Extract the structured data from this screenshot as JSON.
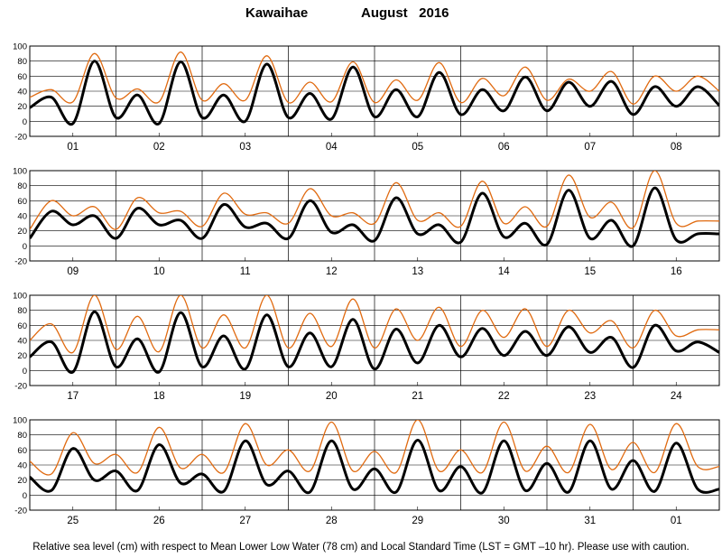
{
  "title": {
    "location": "Kawaihae",
    "month_year": "August   2016"
  },
  "footnote": "Relative sea level (cm) with respect to Mean Lower Low Water (78 cm) and Local Standard Time (LST = GMT –10 hr). Please use with caution.",
  "colors": {
    "predicted": "#000000",
    "observed": "#e06a10",
    "grid": "#000000"
  },
  "chart_data": {
    "type": "line",
    "y_ticks": [
      -20,
      0,
      20,
      40,
      60,
      80,
      100
    ],
    "ylim": [
      -20,
      100
    ],
    "grid": true,
    "rows": [
      {
        "days": [
          "01",
          "02",
          "03",
          "04",
          "05",
          "06",
          "07",
          "08"
        ],
        "series": [
          {
            "key": "predicted",
            "hours": [
              0,
              6,
              12,
              18,
              24,
              30,
              36,
              42,
              48,
              54,
              60,
              66,
              72,
              78,
              84,
              90,
              96,
              102,
              108,
              114,
              120,
              126,
              132,
              138,
              144,
              150,
              156,
              162,
              168,
              174,
              180,
              186,
              192
            ],
            "values": [
              18,
              32,
              -3,
              80,
              5,
              35,
              -3,
              79,
              5,
              35,
              0,
              76,
              5,
              37,
              3,
              72,
              6,
              42,
              6,
              65,
              9,
              42,
              14,
              59,
              14,
              52,
              20,
              53,
              9,
              46,
              20,
              46,
              21
            ]
          },
          {
            "key": "observed",
            "hours": [
              0,
              6,
              12,
              18,
              24,
              30,
              36,
              42,
              48,
              54,
              60,
              66,
              72,
              78,
              84,
              90,
              96,
              102,
              108,
              114,
              120,
              126,
              132,
              138,
              144,
              150,
              156,
              162,
              168,
              174,
              180,
              186,
              192
            ],
            "values": [
              32,
              42,
              26,
              90,
              31,
              43,
              26,
              92,
              28,
              50,
              28,
              87,
              25,
              52,
              26,
              79,
              25,
              55,
              28,
              78,
              25,
              57,
              34,
              72,
              28,
              56,
              40,
              66,
              23,
              60,
              40,
              60,
              40
            ]
          }
        ]
      },
      {
        "days": [
          "09",
          "10",
          "11",
          "12",
          "13",
          "14",
          "15",
          "16"
        ],
        "series": [
          {
            "key": "predicted",
            "hours": [
              0,
              6,
              12,
              18,
              24,
              30,
              36,
              42,
              48,
              54,
              60,
              66,
              72,
              78,
              84,
              90,
              96,
              102,
              108,
              114,
              120,
              126,
              132,
              138,
              144,
              150,
              156,
              162,
              168,
              174,
              180,
              186,
              192
            ],
            "values": [
              10,
              46,
              28,
              40,
              10,
              50,
              28,
              34,
              10,
              55,
              25,
              30,
              10,
              60,
              18,
              28,
              7,
              64,
              16,
              28,
              5,
              70,
              12,
              30,
              2,
              74,
              10,
              34,
              0,
              77,
              8,
              16,
              16
            ]
          },
          {
            "key": "observed",
            "hours": [
              0,
              6,
              12,
              18,
              24,
              30,
              36,
              42,
              48,
              54,
              60,
              66,
              72,
              78,
              84,
              90,
              96,
              102,
              108,
              114,
              120,
              126,
              132,
              138,
              144,
              150,
              156,
              162,
              168,
              174,
              180,
              186,
              192
            ],
            "values": [
              22,
              60,
              40,
              52,
              22,
              64,
              44,
              46,
              26,
              70,
              42,
              44,
              30,
              76,
              40,
              44,
              30,
              84,
              34,
              44,
              26,
              86,
              30,
              52,
              26,
              94,
              38,
              58,
              24,
              100,
              30,
              33,
              33
            ]
          }
        ]
      },
      {
        "days": [
          "17",
          "18",
          "19",
          "20",
          "21",
          "22",
          "23",
          "24"
        ],
        "series": [
          {
            "key": "predicted",
            "hours": [
              0,
              6,
              12,
              18,
              24,
              30,
              36,
              42,
              48,
              54,
              60,
              66,
              72,
              78,
              84,
              90,
              96,
              102,
              108,
              114,
              120,
              126,
              132,
              138,
              144,
              150,
              156,
              162,
              168,
              174,
              180,
              186,
              192
            ],
            "values": [
              18,
              38,
              -2,
              78,
              5,
              42,
              -2,
              77,
              5,
              46,
              2,
              74,
              5,
              50,
              5,
              68,
              2,
              55,
              10,
              60,
              18,
              56,
              20,
              52,
              20,
              58,
              24,
              44,
              4,
              60,
              26,
              38,
              24
            ]
          },
          {
            "key": "observed",
            "hours": [
              0,
              6,
              12,
              18,
              24,
              30,
              36,
              42,
              48,
              54,
              60,
              66,
              72,
              78,
              84,
              90,
              96,
              102,
              108,
              114,
              120,
              126,
              132,
              138,
              144,
              150,
              156,
              162,
              168,
              174,
              180,
              186,
              192
            ],
            "values": [
              40,
              62,
              24,
              100,
              28,
              72,
              25,
              100,
              30,
              74,
              30,
              100,
              30,
              76,
              32,
              95,
              30,
              82,
              40,
              84,
              32,
              80,
              44,
              82,
              32,
              80,
              50,
              66,
              30,
              80,
              46,
              54,
              54
            ]
          }
        ]
      },
      {
        "days": [
          "25",
          "26",
          "27",
          "28",
          "29",
          "30",
          "31",
          "01"
        ],
        "series": [
          {
            "key": "predicted",
            "hours": [
              0,
              6,
              12,
              18,
              24,
              30,
              36,
              42,
              48,
              54,
              60,
              66,
              72,
              78,
              84,
              90,
              96,
              102,
              108,
              114,
              120,
              126,
              132,
              138,
              144,
              150,
              156,
              162,
              168,
              174,
              180,
              186,
              192
            ],
            "values": [
              24,
              6,
              62,
              20,
              32,
              6,
              67,
              16,
              28,
              5,
              72,
              14,
              32,
              4,
              72,
              8,
              35,
              4,
              73,
              6,
              38,
              3,
              72,
              6,
              42,
              4,
              72,
              8,
              46,
              5,
              69,
              8,
              8
            ]
          },
          {
            "key": "observed",
            "hours": [
              0,
              6,
              12,
              18,
              24,
              30,
              36,
              42,
              48,
              54,
              60,
              66,
              72,
              78,
              84,
              90,
              96,
              102,
              108,
              114,
              120,
              126,
              132,
              138,
              144,
              150,
              156,
              162,
              168,
              174,
              180,
              186,
              192
            ],
            "values": [
              45,
              28,
              83,
              42,
              54,
              30,
              90,
              36,
              54,
              30,
              95,
              40,
              60,
              32,
              97,
              32,
              58,
              30,
              100,
              32,
              60,
              30,
              97,
              32,
              65,
              30,
              94,
              34,
              70,
              30,
              95,
              38,
              38
            ]
          }
        ]
      }
    ]
  }
}
